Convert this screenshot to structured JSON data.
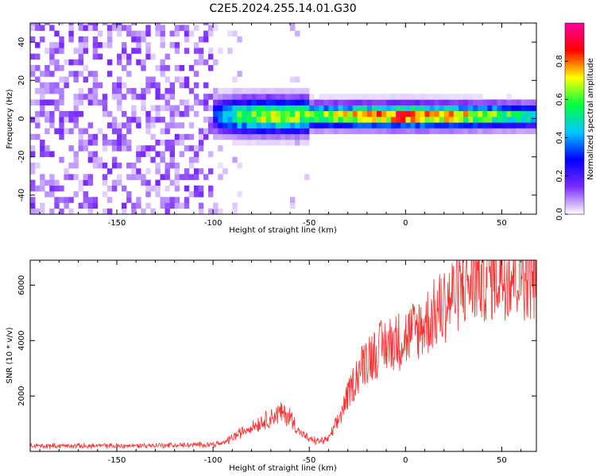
{
  "figure_title": "C2E5.2024.255.14.01.G30",
  "chart_data": [
    {
      "type": "heatmap",
      "xlabel": "Height of straight line (km)",
      "ylabel": "Frequency (Hz)",
      "xlim": [
        -195,
        68
      ],
      "ylim": [
        -50,
        50
      ],
      "xticks": [
        -150,
        -100,
        -50,
        0,
        50
      ],
      "yticks": [
        -40,
        -20,
        0,
        20,
        40
      ],
      "xtick_labels": [
        "-150",
        "-100",
        "-50",
        "0",
        "50"
      ],
      "ytick_labels": [
        "-40",
        "-20",
        "0",
        "20",
        "40"
      ],
      "colorbar": {
        "label": "Normalized spectral amplitude",
        "range": [
          0,
          1
        ],
        "ticks": [
          0,
          0.2,
          0.4,
          0.6,
          0.8
        ],
        "tick_labels": [
          "0.0",
          "0.2",
          "0.4",
          "0.6",
          "0.8"
        ],
        "colormap": [
          "#ffffff",
          "#7a2cff",
          "#0000ff",
          "#00c8ff",
          "#00ff40",
          "#ffff00",
          "#ff0000",
          "#ff00a0"
        ]
      },
      "band_profile": [
        {
          "x": -195,
          "amp": 0.0
        },
        {
          "x": -101,
          "amp": 0.0
        },
        {
          "x": -100,
          "amp": 0.3
        },
        {
          "x": -90,
          "amp": 0.55
        },
        {
          "x": -75,
          "amp": 0.68
        },
        {
          "x": -60,
          "amp": 0.65
        },
        {
          "x": -50,
          "amp": 0.62
        },
        {
          "x": -35,
          "amp": 0.7
        },
        {
          "x": -20,
          "amp": 0.78
        },
        {
          "x": 0,
          "amp": 0.88
        },
        {
          "x": 20,
          "amp": 0.78
        },
        {
          "x": 50,
          "amp": 0.6
        },
        {
          "x": 68,
          "amp": 0.52
        }
      ],
      "grid": false
    },
    {
      "type": "line",
      "xlabel": "Height of straight line (km)",
      "ylabel": "SNR (10 * v/v)",
      "xlim": [
        -195,
        68
      ],
      "ylim": [
        0,
        6900
      ],
      "xticks": [
        -150,
        -100,
        -50,
        0,
        50
      ],
      "yticks": [
        2000,
        4000,
        6000
      ],
      "xtick_labels": [
        "-150",
        "-100",
        "-50",
        "0",
        "50"
      ],
      "ytick_labels": [
        "2000",
        "4000",
        "6000"
      ],
      "line_color": "#ff3030",
      "envelope": [
        {
          "x": -195,
          "y": 200
        },
        {
          "x": -150,
          "y": 200
        },
        {
          "x": -110,
          "y": 230
        },
        {
          "x": -95,
          "y": 280
        },
        {
          "x": -90,
          "y": 500
        },
        {
          "x": -80,
          "y": 900
        },
        {
          "x": -72,
          "y": 1150
        },
        {
          "x": -65,
          "y": 1400
        },
        {
          "x": -60,
          "y": 1250
        },
        {
          "x": -55,
          "y": 700
        },
        {
          "x": -50,
          "y": 420
        },
        {
          "x": -45,
          "y": 360
        },
        {
          "x": -40,
          "y": 450
        },
        {
          "x": -35,
          "y": 1100
        },
        {
          "x": -30,
          "y": 2000
        },
        {
          "x": -25,
          "y": 2800
        },
        {
          "x": -20,
          "y": 3400
        },
        {
          "x": -10,
          "y": 3850
        },
        {
          "x": 0,
          "y": 4100
        },
        {
          "x": 10,
          "y": 4600
        },
        {
          "x": 20,
          "y": 5300
        },
        {
          "x": 30,
          "y": 6000
        },
        {
          "x": 40,
          "y": 6400
        },
        {
          "x": 50,
          "y": 6500
        },
        {
          "x": 60,
          "y": 6500
        },
        {
          "x": 68,
          "y": 6500
        }
      ],
      "grid": false
    }
  ]
}
